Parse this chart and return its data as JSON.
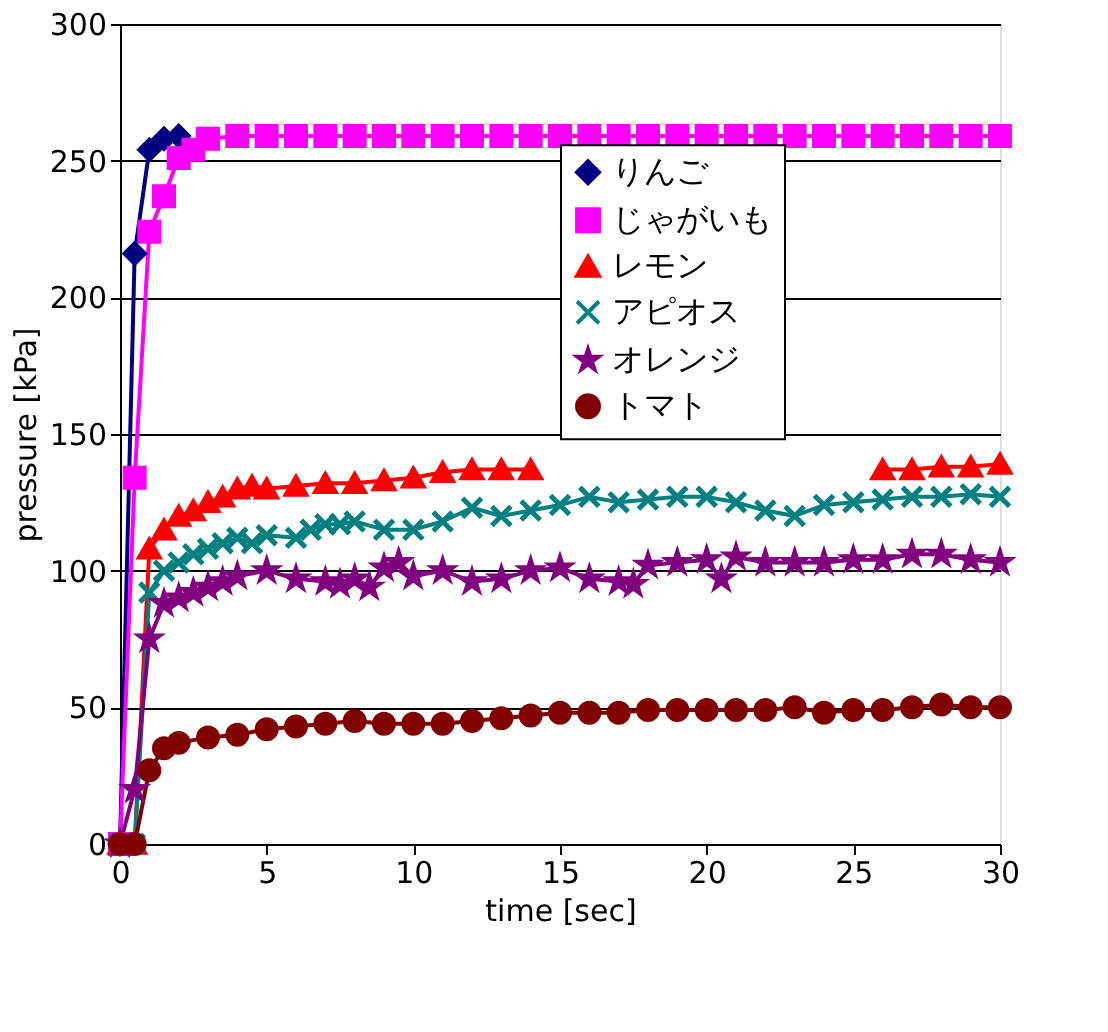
{
  "chart_data": {
    "type": "line",
    "xlabel": "time [sec]",
    "ylabel": "pressure [kPa]",
    "xlim": [
      0,
      30
    ],
    "xticks": [
      0,
      5,
      10,
      15,
      20,
      25,
      30
    ],
    "ylim": [
      0,
      300
    ],
    "yticks": [
      0,
      50,
      100,
      150,
      200,
      250,
      300
    ],
    "grid": "y",
    "legend": "top right",
    "line_style": "solid",
    "series": [
      {
        "name": "りんご",
        "color": "#000080",
        "marker": "diamond",
        "x": [
          0,
          0.5,
          1,
          1.5,
          2
        ],
        "values": [
          0,
          216,
          254,
          258,
          259
        ]
      },
      {
        "name": "じゃがいも",
        "color": "#ff00ff",
        "marker": "square",
        "x": [
          0,
          0.5,
          1,
          1.5,
          2,
          2.5,
          3,
          4,
          5,
          6,
          7,
          8,
          9,
          10,
          11,
          12,
          13,
          14,
          15,
          16,
          17,
          18,
          19,
          20,
          21,
          22,
          23,
          24,
          25,
          26,
          27,
          28,
          29,
          30
        ],
        "values": [
          0,
          134,
          224,
          237,
          251,
          254,
          258,
          259,
          259,
          259,
          259,
          259,
          259,
          259,
          259,
          259,
          259,
          259,
          259,
          259,
          259,
          259,
          259,
          259,
          259,
          259,
          259,
          259,
          259,
          259,
          259,
          259,
          259,
          259
        ]
      },
      {
        "name": "レモン",
        "color": "#ff0000",
        "marker": "triangle",
        "x": [
          0,
          0.5,
          1,
          1.5,
          2,
          2.5,
          3,
          3.5,
          4,
          4.5,
          5,
          6,
          7,
          8,
          9,
          10,
          11,
          12,
          13,
          14,
          15,
          16,
          17,
          18,
          19,
          20,
          21,
          22,
          23,
          24,
          25,
          26,
          27,
          28,
          29,
          30
        ],
        "values": [
          0,
          0,
          108,
          115,
          120,
          122,
          125,
          127,
          130,
          131,
          130,
          131,
          132,
          132,
          133,
          134,
          136,
          137,
          137,
          137,
          null,
          null,
          null,
          null,
          null,
          null,
          null,
          null,
          null,
          null,
          null,
          137,
          137,
          138,
          138,
          139
        ]
      },
      {
        "name": "アピオス",
        "color": "#008080",
        "marker": "cross",
        "x": [
          0,
          0.5,
          1,
          1.5,
          2,
          2.5,
          3,
          3.5,
          4,
          4.5,
          5,
          6,
          6.5,
          7,
          7.5,
          8,
          9,
          10,
          11,
          12,
          13,
          14,
          15,
          16,
          17,
          18,
          19,
          20,
          21,
          22,
          23,
          24,
          25,
          26,
          27,
          28,
          29,
          30
        ],
        "values": [
          0,
          0,
          92,
          100,
          103,
          106,
          108,
          110,
          112,
          110,
          113,
          112,
          115,
          117,
          117,
          118,
          115,
          115,
          118,
          123,
          120,
          122,
          124,
          127,
          125,
          126,
          127,
          127,
          125,
          122,
          120,
          124,
          125,
          126,
          127,
          127,
          128,
          127
        ]
      },
      {
        "name": "オレンジ",
        "color": "#800080",
        "marker": "star",
        "x": [
          0,
          0.5,
          1,
          1.5,
          2,
          2.5,
          3,
          3.5,
          4,
          5,
          6,
          7,
          7.5,
          8,
          8.5,
          9,
          9.5,
          10,
          11,
          12,
          13,
          14,
          15,
          16,
          17,
          17.5,
          18,
          19,
          20,
          20.5,
          21,
          22,
          23,
          24,
          25,
          26,
          27,
          28,
          29,
          30
        ],
        "values": [
          0,
          20,
          75,
          88,
          90,
          92,
          94,
          96,
          98,
          100,
          97,
          96,
          95,
          97,
          94,
          101,
          103,
          98,
          100,
          96,
          97,
          100,
          101,
          97,
          96,
          95,
          102,
          103,
          104,
          97,
          105,
          103,
          103,
          103,
          104,
          104,
          106,
          106,
          104,
          103
        ]
      },
      {
        "name": "トマト",
        "color": "#800000",
        "marker": "circle",
        "x": [
          0,
          0.5,
          1,
          1.5,
          2,
          3,
          4,
          5,
          6,
          7,
          8,
          9,
          10,
          11,
          12,
          13,
          14,
          15,
          16,
          17,
          18,
          19,
          20,
          21,
          22,
          23,
          24,
          25,
          26,
          27,
          28,
          29,
          30
        ],
        "values": [
          0,
          0,
          27,
          35,
          37,
          39,
          40,
          42,
          43,
          44,
          45,
          44,
          44,
          44,
          45,
          46,
          47,
          48,
          48,
          48,
          49,
          49,
          49,
          49,
          49,
          50,
          48,
          49,
          49,
          50,
          51,
          50,
          50
        ]
      }
    ]
  }
}
